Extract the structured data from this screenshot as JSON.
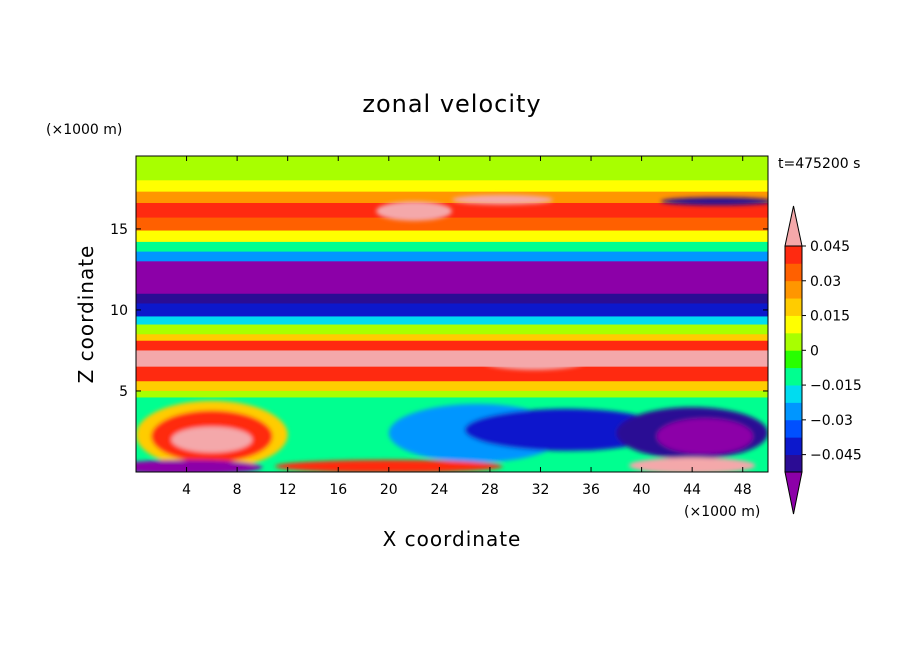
{
  "chart_data": {
    "type": "heatmap",
    "title": "zonal velocity",
    "xlabel": "X coordinate",
    "ylabel": "Z coordinate",
    "x_unit": "(×1000 m)",
    "y_unit": "(×1000 m)",
    "time_label": "t=475200 s",
    "xlim": [
      0,
      50
    ],
    "ylim": [
      0,
      19.5
    ],
    "x_ticks": [
      4,
      8,
      12,
      16,
      20,
      24,
      28,
      32,
      36,
      40,
      44,
      48
    ],
    "y_ticks": [
      5,
      10,
      15
    ],
    "grid": false,
    "colorbar": {
      "placement": "right",
      "extend": "both",
      "levels_min": -0.0525,
      "levels_step": 0.0075,
      "labels": [
        "0.045",
        "0.03",
        "0.015",
        "0",
        "−0.015",
        "−0.03",
        "−0.045"
      ],
      "label_values": [
        0.045,
        0.03,
        0.015,
        0,
        -0.015,
        -0.03,
        -0.045
      ],
      "colors": [
        "#8c00a8",
        "#2b0c94",
        "#0c18cc",
        "#0050ff",
        "#0096ff",
        "#00dcf0",
        "#00ff90",
        "#28ff00",
        "#a8ff00",
        "#ffff00",
        "#ffcc00",
        "#ff9600",
        "#ff6000",
        "#ff2a10",
        "#f4a8aa"
      ]
    },
    "layers": [
      {
        "z_range": [
          18.0,
          19.5
        ],
        "value": 0.002
      },
      {
        "z_range": [
          17.3,
          18.0
        ],
        "value": 0.009
      },
      {
        "z_range": [
          16.6,
          17.3
        ],
        "value": 0.03
      },
      {
        "z_range": [
          15.7,
          16.6
        ],
        "value": 0.038
      },
      {
        "z_range": [
          14.9,
          15.7
        ],
        "value": 0.033
      },
      {
        "z_range": [
          14.2,
          14.9
        ],
        "value": 0.01
      },
      {
        "z_range": [
          13.6,
          14.2
        ],
        "value": -0.012
      },
      {
        "z_range": [
          13.0,
          13.6
        ],
        "value": -0.03
      },
      {
        "z_range": [
          11.0,
          13.0
        ],
        "value": -0.055
      },
      {
        "z_range": [
          10.4,
          11.0
        ],
        "value": -0.047
      },
      {
        "z_range": [
          9.6,
          10.4
        ],
        "value": -0.04
      },
      {
        "z_range": [
          9.1,
          9.6
        ],
        "value": -0.02
      },
      {
        "z_range": [
          8.5,
          9.1
        ],
        "value": 0.0
      },
      {
        "z_range": [
          8.1,
          8.5
        ],
        "value": 0.02
      },
      {
        "z_range": [
          7.5,
          8.1
        ],
        "value": 0.038
      },
      {
        "z_range": [
          6.5,
          7.5
        ],
        "value": 0.046
      },
      {
        "z_range": [
          5.6,
          6.5
        ],
        "value": 0.04
      },
      {
        "z_range": [
          5.0,
          5.6
        ],
        "value": 0.02
      },
      {
        "z_range": [
          4.6,
          5.0
        ],
        "value": 0.0
      },
      {
        "z_range": [
          4.2,
          4.6
        ],
        "value": -0.01
      },
      {
        "z_range": [
          0.0,
          4.2
        ],
        "value": -0.015
      }
    ],
    "features": [
      {
        "center": [
          29,
          16.8
        ],
        "radii": [
          4,
          0.3
        ],
        "value": 0.055
      },
      {
        "center": [
          46,
          16.7
        ],
        "radii": [
          4.5,
          0.25
        ],
        "value": -0.05
      },
      {
        "center": [
          22,
          16.1
        ],
        "radii": [
          3,
          0.6
        ],
        "value": 0.046
      },
      {
        "center": [
          31.5,
          6.8
        ],
        "radii": [
          4,
          0.5
        ],
        "value": 0.055
      },
      {
        "center": [
          27,
          2.4
        ],
        "radii": [
          7,
          1.8
        ],
        "value": -0.028
      },
      {
        "center": [
          34,
          2.6
        ],
        "radii": [
          8,
          1.3
        ],
        "value": -0.04
      },
      {
        "center": [
          44,
          2.4
        ],
        "radii": [
          6,
          1.6
        ],
        "value": -0.048
      },
      {
        "center": [
          45,
          2.2
        ],
        "radii": [
          3.8,
          1.1
        ],
        "value": -0.056
      },
      {
        "center": [
          6,
          2.3
        ],
        "radii": [
          6,
          2.1
        ],
        "value": 0.02
      },
      {
        "center": [
          6,
          2.2
        ],
        "radii": [
          4.8,
          1.6
        ],
        "value": 0.04
      },
      {
        "center": [
          6,
          2.0
        ],
        "radii": [
          3.2,
          0.8
        ],
        "value": 0.055
      },
      {
        "center": [
          4,
          0.3
        ],
        "radii": [
          6,
          0.45
        ],
        "value": -0.055
      },
      {
        "center": [
          20,
          0.35
        ],
        "radii": [
          9,
          0.4
        ],
        "value": 0.04
      },
      {
        "center": [
          44,
          0.4
        ],
        "radii": [
          5,
          0.5
        ],
        "value": 0.05
      }
    ]
  }
}
